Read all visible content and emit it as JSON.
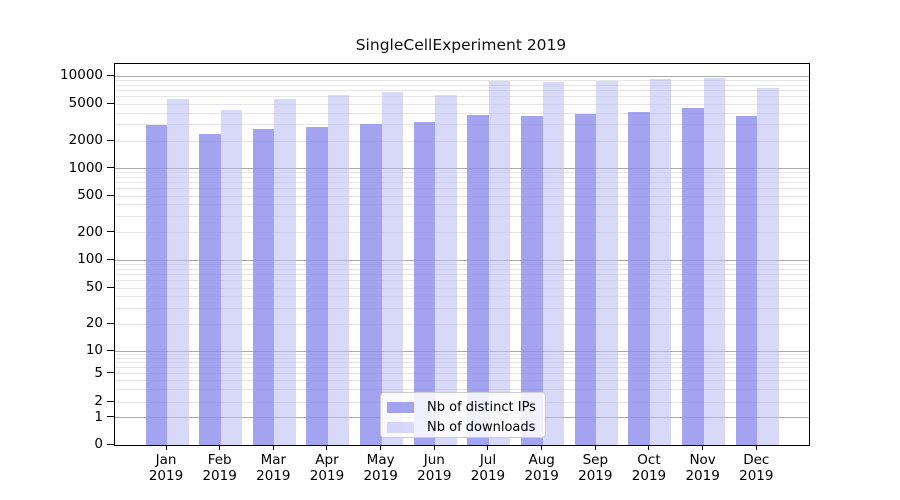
{
  "chart": {
    "background": "#ffffff",
    "axis_color": "#000000",
    "major_grid_color": "#ababab",
    "minor_grid_color": "#e6e6e6"
  },
  "chart_data": {
    "type": "bar",
    "title": "SingleCellExperiment 2019",
    "xlabel": "",
    "ylabel": "",
    "yscale": "log",
    "ylim": [
      0,
      13500
    ],
    "grid": true,
    "legend_position": "lower center",
    "categories": [
      "Jan 2019",
      "Feb 2019",
      "Mar 2019",
      "Apr 2019",
      "May 2019",
      "Jun 2019",
      "Jul 2019",
      "Aug 2019",
      "Sep 2019",
      "Oct 2019",
      "Nov 2019",
      "Dec 2019"
    ],
    "y_ticks": [
      0,
      1,
      2,
      5,
      10,
      20,
      50,
      100,
      200,
      500,
      1000,
      2000,
      5000,
      10000
    ],
    "series": [
      {
        "name": "Nb of distinct IPs",
        "color": "rgba(140,140,236,0.8)",
        "values": [
          3000,
          2400,
          2700,
          2850,
          3100,
          3250,
          3800,
          3750,
          3900,
          4150,
          4550,
          3700
        ]
      },
      {
        "name": "Nb of downloads",
        "color": "rgba(184,184,244,0.55)",
        "values": [
          5700,
          4300,
          5700,
          6300,
          6700,
          6250,
          8900,
          8700,
          8900,
          9300,
          9600,
          7500
        ]
      }
    ]
  }
}
